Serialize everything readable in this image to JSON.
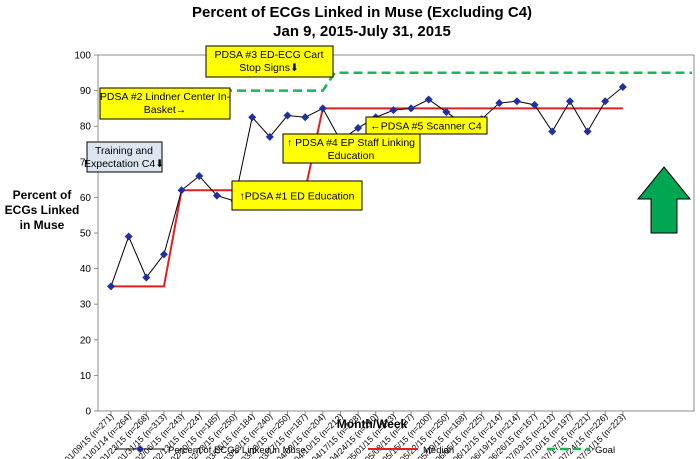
{
  "chart_data": {
    "type": "line",
    "title": "Percent of ECGs Linked in Muse (Excluding C4)",
    "subtitle": "Jan 9, 2015-July 31, 2015",
    "xlabel": "Month/Week",
    "ylabel": "Percent of ECGs Linked in Muse",
    "ylim": [
      0,
      100
    ],
    "yticks": [
      0,
      10,
      20,
      30,
      40,
      50,
      60,
      70,
      80,
      90,
      100
    ],
    "grid": false,
    "legend_position": "bottom",
    "categories": [
      "01/09/15 (n=271)",
      "11/01/14 (n=264)",
      "01/23/15 (n=268)",
      "01/31/15 (n=313)",
      "02/06/15 (n=243)",
      "02/13/15 (n=224)",
      "02/20/15 (n=185)",
      "02/28/15 (n=250)",
      "03/06/15 (n=184)",
      "03/13/15 (n=240)",
      "03/20/15 (n=250)",
      "03/27/15 (n=187)",
      "04/03/15 (n=204)",
      "04/10/15 (n=212)",
      "04/17/15 (n=228)",
      "04/24/15 (n=240)",
      "05/01/15 (n=273)",
      "05/08/15 (n=237)",
      "05/15/15 (n=200)",
      "05/22/15 (n=250)",
      "05/29/15 (n=168)",
      "06/05/15 (n=225)",
      "06/12/15 (n=214)",
      "06/19/15 (n=214)",
      "06/26/15 (n=167)",
      "07/03/15 (n=212)",
      "07/10/15 (n=197)",
      "07/17/15 (n=221)",
      "07/24/15 (n=226)",
      "07/31/15 (n=223)"
    ],
    "series": [
      {
        "name": "Percent of ECGs Linked in Muse",
        "style": "line-diamond",
        "color": "#1f2fa6",
        "values": [
          35,
          49,
          37.5,
          44,
          62,
          66,
          60.5,
          59,
          82.5,
          77,
          83,
          82.5,
          85,
          76,
          79.5,
          82.5,
          84.5,
          85,
          87.5,
          84,
          80.5,
          82,
          86.5,
          87,
          86,
          78.5,
          87,
          78.5,
          87,
          91
        ]
      },
      {
        "name": "Median",
        "style": "line",
        "color": "#e02020",
        "values": [
          35,
          35,
          35,
          35,
          62,
          62,
          62,
          62,
          62,
          62,
          62,
          62,
          85,
          85,
          85,
          85,
          85,
          85,
          85,
          85,
          85,
          85,
          85,
          85,
          85,
          85,
          85,
          85,
          85,
          85
        ]
      },
      {
        "name": "Goal",
        "style": "dashed",
        "color": "#22b358",
        "values": [
          90,
          90,
          90,
          90,
          90,
          90,
          90,
          90,
          90,
          90,
          90,
          90,
          95,
          95,
          95,
          95,
          95,
          95,
          95,
          95,
          95,
          95,
          95,
          95,
          95,
          95,
          95,
          95,
          95,
          95
        ],
        "extends_to_right_edge": true
      }
    ],
    "annotations": [
      {
        "lines": [
          "PDSA #3 ED-ECG Cart",
          "Stop Signs⬇"
        ],
        "fill": "#ffff00"
      },
      {
        "lines": [
          "PDSA #2 Lindner Center In-",
          "Basket→"
        ],
        "fill": "#ffff00"
      },
      {
        "lines": [
          "Training and",
          "Expectation C4⬇"
        ],
        "fill": "#dce6f1"
      },
      {
        "lines": [
          "↑ PDSA #4 EP Staff Linking",
          "Education"
        ],
        "fill": "#ffff00"
      },
      {
        "lines": [
          "←PDSA #5 Scanner C4"
        ],
        "fill": "#ffff00"
      },
      {
        "lines": [
          "↑PDSA #1 ED Education"
        ],
        "fill": "#ffff00"
      }
    ],
    "marker_arrow": {
      "direction": "up",
      "color": "#00a651"
    }
  }
}
